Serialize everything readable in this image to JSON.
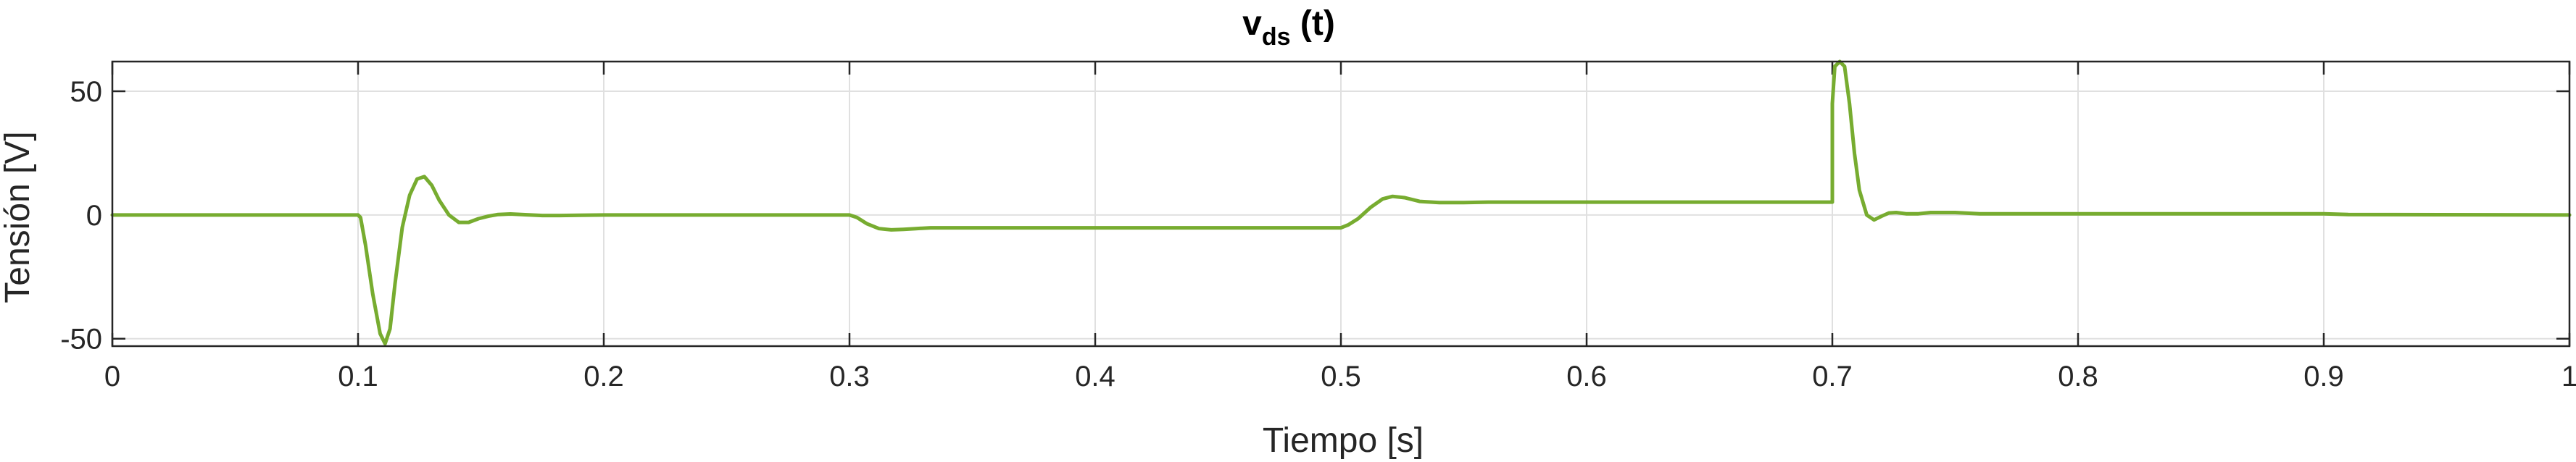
{
  "chart_data": {
    "type": "line",
    "title": {
      "main": "v",
      "subscript": "ds",
      "suffix": " (t)"
    },
    "xlabel": "Tiempo [s]",
    "ylabel": "Tensión [V]",
    "xlim": [
      0,
      1
    ],
    "ylim": [
      -53,
      62
    ],
    "xticks": [
      0,
      0.1,
      0.2,
      0.3,
      0.4,
      0.5,
      0.6,
      0.7,
      0.8,
      0.9,
      1
    ],
    "xtick_labels": [
      "0",
      "0.1",
      "0.2",
      "0.3",
      "0.4",
      "0.5",
      "0.6",
      "0.7",
      "0.8",
      "0.9",
      "1"
    ],
    "yticks": [
      -50,
      0,
      50
    ],
    "ytick_labels": [
      "-50",
      "0",
      "50"
    ],
    "grid": true,
    "box": true,
    "line_color": "#77AC30",
    "series": [
      {
        "x": [
          0,
          0.1,
          0.101,
          0.103,
          0.106,
          0.109,
          0.111,
          0.113,
          0.115,
          0.118,
          0.121,
          0.124,
          0.127,
          0.13,
          0.133,
          0.137,
          0.141,
          0.145,
          0.149,
          0.153,
          0.157,
          0.162,
          0.168,
          0.175,
          0.182,
          0.19,
          0.2,
          0.3,
          0.303,
          0.307,
          0.312,
          0.317,
          0.322,
          0.327,
          0.333,
          0.34,
          0.35,
          0.36,
          0.5,
          0.503,
          0.507,
          0.512,
          0.517,
          0.521,
          0.526,
          0.532,
          0.54,
          0.55,
          0.56,
          0.7,
          0.7,
          0.701,
          0.703,
          0.705,
          0.707,
          0.709,
          0.711,
          0.714,
          0.717,
          0.72,
          0.723,
          0.726,
          0.73,
          0.735,
          0.74,
          0.75,
          0.76,
          0.8,
          0.9,
          0.91,
          1.0
        ],
        "y": [
          0,
          0,
          -1,
          -12,
          -32,
          -48,
          -52,
          -46,
          -28,
          -5,
          8,
          14.5,
          15.5,
          12,
          6,
          0,
          -3,
          -3,
          -1.5,
          -0.5,
          0.2,
          0.4,
          0.1,
          -0.2,
          -0.2,
          -0.1,
          0,
          0,
          -1,
          -3.5,
          -5.5,
          -6,
          -5.8,
          -5.5,
          -5.2,
          -5.2,
          -5.2,
          -5.2,
          -5.2,
          -4,
          -1.5,
          3,
          6.5,
          7.5,
          7,
          5.5,
          5,
          5,
          5.2,
          5.2,
          45,
          60,
          62,
          60,
          45,
          25,
          10,
          0,
          -2,
          -0.5,
          0.8,
          1,
          0.5,
          0.5,
          1,
          1,
          0.5,
          0.5,
          0.5,
          0.2,
          0
        ]
      }
    ]
  }
}
